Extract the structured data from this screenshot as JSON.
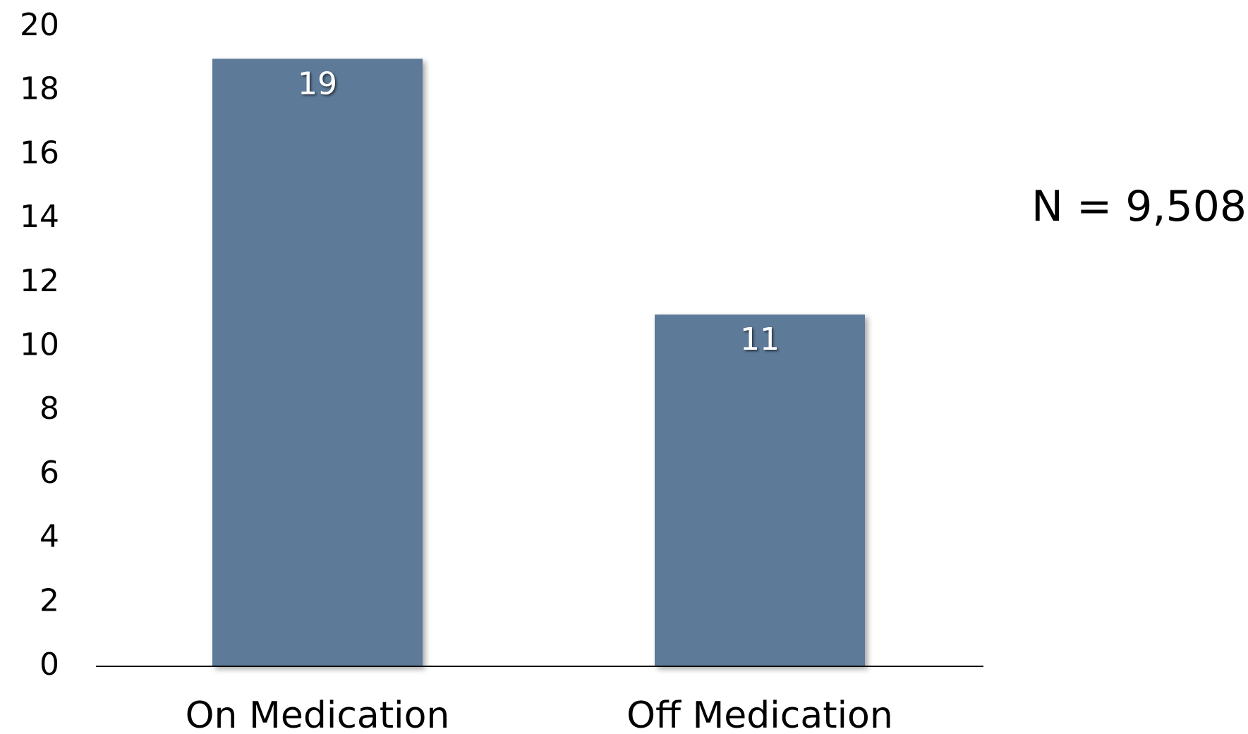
{
  "chart_data": {
    "type": "bar",
    "categories": [
      "On Medication",
      "Off Medication"
    ],
    "values": [
      19,
      11
    ],
    "data_labels": [
      "19",
      "11"
    ],
    "ylim": [
      0,
      20
    ],
    "yticks": [
      0,
      2,
      4,
      6,
      8,
      10,
      12,
      14,
      16,
      18,
      20
    ],
    "grid": false,
    "legend": "none",
    "bar_color": "#5d7a99",
    "annotation": "N = 9,508"
  }
}
